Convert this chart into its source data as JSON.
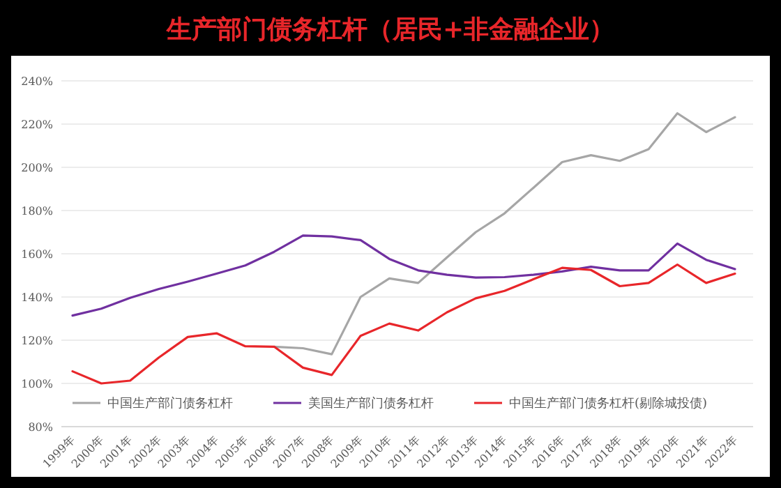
{
  "chart_data": {
    "type": "line",
    "title": "生产部门债务杠杆（居民+非金融企业）",
    "categories": [
      "1999年",
      "2000年",
      "2001年",
      "2002年",
      "2003年",
      "2004年",
      "2005年",
      "2006年",
      "2007年",
      "2008年",
      "2009年",
      "2010年",
      "2011年",
      "2012年",
      "2013年",
      "2014年",
      "2015年",
      "2016年",
      "2017年",
      "2018年",
      "2019年",
      "2020年",
      "2021年",
      "2022年"
    ],
    "series": [
      {
        "name": "中国生产部门债务杠杆",
        "color": "#a6a6a6",
        "values": [
          null,
          null,
          null,
          null,
          null,
          null,
          null,
          117,
          116.3,
          113.5,
          140,
          148.6,
          146.5,
          158.3,
          170,
          178.7,
          190.5,
          202.4,
          205.6,
          203,
          208.4,
          225,
          216.3,
          223.2
        ]
      },
      {
        "name": "美国生产部门债务杠杆",
        "color": "#7030a0",
        "values": [
          131.4,
          134.6,
          139.6,
          143.7,
          147.1,
          150.8,
          154.6,
          160.9,
          168.4,
          168,
          166.3,
          157.6,
          152.3,
          150.3,
          149,
          149.2,
          150.3,
          151.8,
          154,
          152.3,
          152.3,
          164.7,
          157.2,
          152.9
        ]
      },
      {
        "name": "中国生产部门债务杠杆(剔除城投债)",
        "color": "#e8262a",
        "values": [
          105.6,
          100,
          101.3,
          112,
          121.5,
          123.2,
          117.2,
          117,
          107.3,
          103.9,
          122,
          127.7,
          124.5,
          132.9,
          139.4,
          142.8,
          148.2,
          153.5,
          152.5,
          145,
          146.5,
          155,
          146.5,
          150.8
        ]
      }
    ],
    "ylim": [
      80,
      240
    ],
    "yticks": [
      {
        "value": 80,
        "label": "80%"
      },
      {
        "value": 100,
        "label": "100%"
      },
      {
        "value": 120,
        "label": "120%"
      },
      {
        "value": 140,
        "label": "140%"
      },
      {
        "value": 160,
        "label": "160%"
      },
      {
        "value": 180,
        "label": "180%"
      },
      {
        "value": 200,
        "label": "200%"
      },
      {
        "value": 220,
        "label": "220%"
      },
      {
        "value": 240,
        "label": "240%"
      }
    ],
    "grid": "y",
    "legend": "bottom",
    "marker": "none",
    "line_style": "solid"
  }
}
